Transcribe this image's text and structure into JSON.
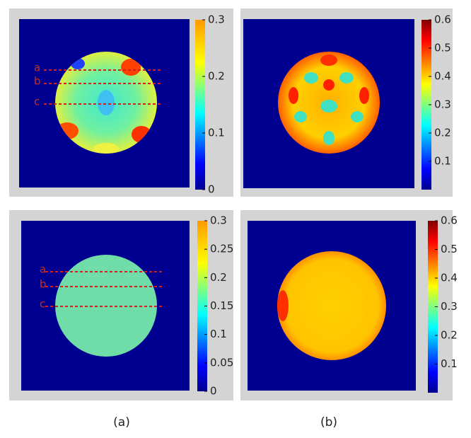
{
  "chart_data": [
    {
      "type": "heatmap",
      "colorbar": {
        "lim": [
          0,
          0.3
        ],
        "ticks": [
          0,
          0.1,
          0.2,
          0.3
        ]
      },
      "line_labels": [
        "a",
        "b",
        "c"
      ]
    },
    {
      "type": "heatmap",
      "colorbar": {
        "lim": [
          0,
          0.6
        ],
        "ticks": [
          0.1,
          0.2,
          0.3,
          0.4,
          0.5,
          0.6
        ]
      }
    },
    {
      "type": "heatmap",
      "colorbar": {
        "lim": [
          0,
          0.3
        ],
        "ticks": [
          0,
          0.05,
          0.1,
          0.15,
          0.2,
          0.25,
          0.3
        ]
      },
      "line_labels": [
        "a",
        "b",
        "c"
      ]
    },
    {
      "type": "heatmap",
      "colorbar": {
        "lim": [
          0,
          0.6
        ],
        "ticks": [
          0.1,
          0.2,
          0.3,
          0.4,
          0.5,
          0.6
        ]
      }
    }
  ],
  "captions": [
    "(a)",
    "(b)"
  ]
}
